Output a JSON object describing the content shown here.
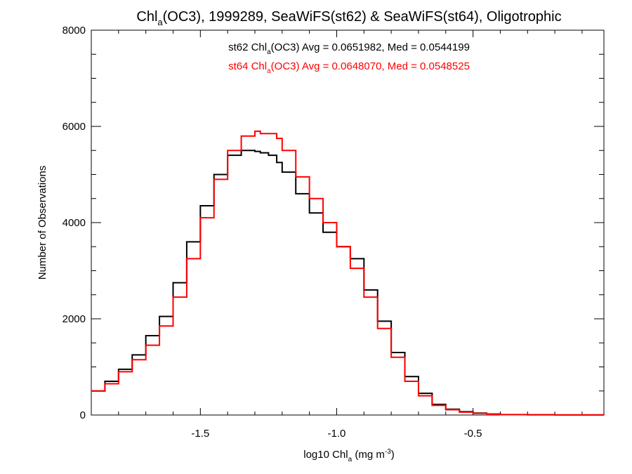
{
  "chart_data": {
    "type": "line",
    "title_parts": [
      "Chl",
      "a",
      "(OC3), 1999289, SeaWiFS(st62) & SeaWiFS(st64), Oligotrophic"
    ],
    "xlabel_parts": [
      "log10 Chl",
      "a",
      " (mg m",
      "-3",
      ")"
    ],
    "ylabel": "Number of Observations",
    "xlim": [
      -1.9,
      -0.02
    ],
    "ylim": [
      0,
      8000
    ],
    "x_ticks": [
      -1.5,
      -1.0,
      -0.5
    ],
    "x_tick_labels": [
      "-1.5",
      "-1.0",
      "-0.5"
    ],
    "y_ticks": [
      0,
      2000,
      4000,
      6000,
      8000
    ],
    "y_tick_labels": [
      "0",
      "2000",
      "4000",
      "6000",
      "8000"
    ],
    "grid": false,
    "annotations": [
      {
        "parts": [
          "st62 Chl",
          "a",
          "(OC3) Avg = 0.0651982, Med = 0.0544199"
        ],
        "color": "#000000"
      },
      {
        "parts": [
          "st64 Chl",
          "a",
          "(OC3) Avg = 0.0648070, Med = 0.0548525"
        ],
        "color": "#ff0000"
      }
    ],
    "series": [
      {
        "color": "#000000",
        "x": [
          -1.9,
          -1.85,
          -1.8,
          -1.75,
          -1.7,
          -1.65,
          -1.6,
          -1.55,
          -1.5,
          -1.45,
          -1.4,
          -1.35,
          -1.3,
          -1.28,
          -1.25,
          -1.22,
          -1.2,
          -1.15,
          -1.1,
          -1.05,
          -1.0,
          -0.95,
          -0.9,
          -0.85,
          -0.8,
          -0.75,
          -0.7,
          -0.65,
          -0.6,
          -0.55,
          -0.5,
          -0.45,
          -0.4,
          -0.3,
          -0.2,
          -0.1,
          -0.02
        ],
        "y": [
          500,
          700,
          950,
          1250,
          1650,
          2050,
          2750,
          3600,
          4350,
          5000,
          5400,
          5500,
          5480,
          5450,
          5400,
          5250,
          5050,
          4600,
          4200,
          3800,
          3500,
          3250,
          2600,
          1950,
          1300,
          800,
          450,
          220,
          120,
          70,
          40,
          20,
          10,
          5,
          2,
          1,
          0
        ]
      },
      {
        "color": "#ff0000",
        "x": [
          -1.9,
          -1.85,
          -1.8,
          -1.75,
          -1.7,
          -1.65,
          -1.6,
          -1.55,
          -1.5,
          -1.45,
          -1.4,
          -1.35,
          -1.3,
          -1.28,
          -1.25,
          -1.22,
          -1.2,
          -1.15,
          -1.1,
          -1.05,
          -1.0,
          -0.95,
          -0.9,
          -0.85,
          -0.8,
          -0.75,
          -0.7,
          -0.65,
          -0.6,
          -0.55,
          -0.5,
          -0.45,
          -0.4,
          -0.3,
          -0.2,
          -0.1,
          -0.02
        ],
        "y": [
          500,
          650,
          900,
          1150,
          1450,
          1850,
          2450,
          3250,
          4100,
          4900,
          5500,
          5800,
          5900,
          5850,
          5850,
          5750,
          5500,
          4950,
          4500,
          4000,
          3500,
          3050,
          2450,
          1800,
          1200,
          700,
          400,
          200,
          110,
          60,
          35,
          15,
          8,
          4,
          2,
          1,
          0
        ]
      }
    ]
  }
}
